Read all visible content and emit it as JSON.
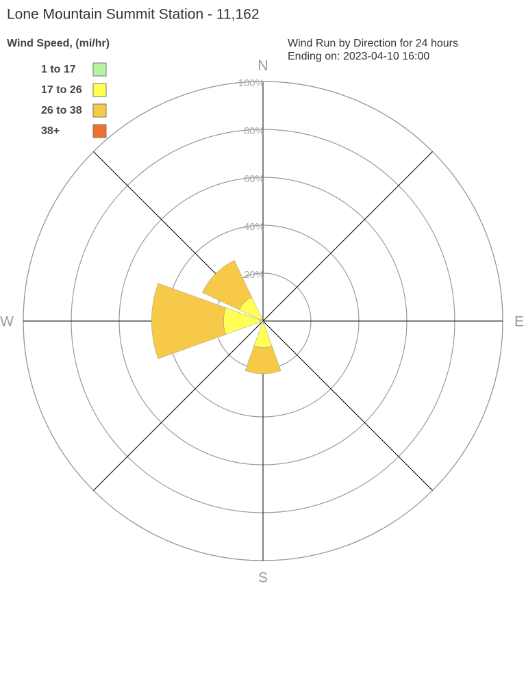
{
  "chart_data": {
    "type": "windrose",
    "title": "Lone Mountain Summit Station - 11,162",
    "legend_title": "Wind Speed, (mi/hr)",
    "subtitle": [
      "Wind Run by Direction for 24 hours",
      "Ending on: 2023-04-10 16:00"
    ],
    "categories": [
      "N",
      null,
      "E",
      null,
      "S",
      null,
      "W",
      null
    ],
    "series": [
      {
        "name": "1 to 17",
        "color": "#b3f5a0",
        "values": [
          0,
          0,
          0,
          0,
          1,
          1,
          1.5,
          1
        ]
      },
      {
        "name": "17 to 26",
        "color": "#ffff55",
        "values": [
          0,
          0,
          0,
          0,
          10,
          0,
          15,
          10
        ]
      },
      {
        "name": "26 to 38",
        "color": "#f7c948",
        "values": [
          0,
          0,
          0,
          0,
          11,
          0,
          30,
          17
        ]
      },
      {
        "name": "38+",
        "color": "#f07030",
        "values": [
          0,
          0,
          0,
          0,
          0,
          0,
          0,
          0
        ]
      }
    ],
    "ylim": [
      0,
      100
    ],
    "yticks": [
      {
        "value": 20,
        "label": "20%"
      },
      {
        "value": 40,
        "label": "40%"
      },
      {
        "value": 60,
        "label": "60%"
      },
      {
        "value": 80,
        "label": "80%"
      },
      {
        "value": 100,
        "label": "100%"
      }
    ]
  }
}
